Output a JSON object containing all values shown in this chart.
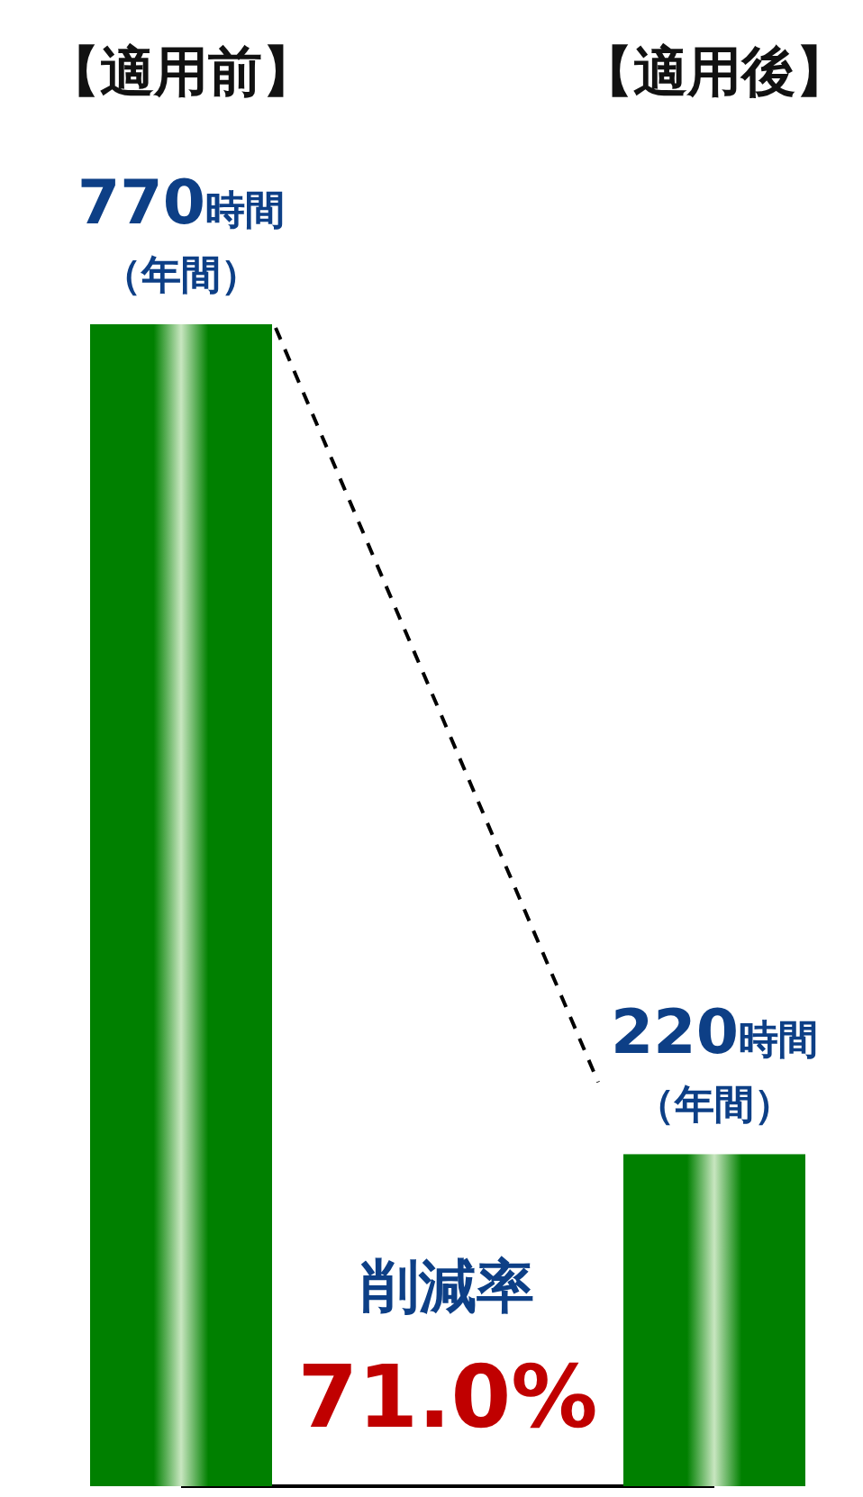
{
  "chart_data": {
    "type": "bar",
    "categories": [
      "【適用前】",
      "【適用後】"
    ],
    "values": [
      770,
      220
    ],
    "color": "#008000",
    "value_labels": [
      "770時間（年間）",
      "220時間（年間）"
    ],
    "annotations": [
      "削減率",
      "71.0%"
    ]
  }
}
